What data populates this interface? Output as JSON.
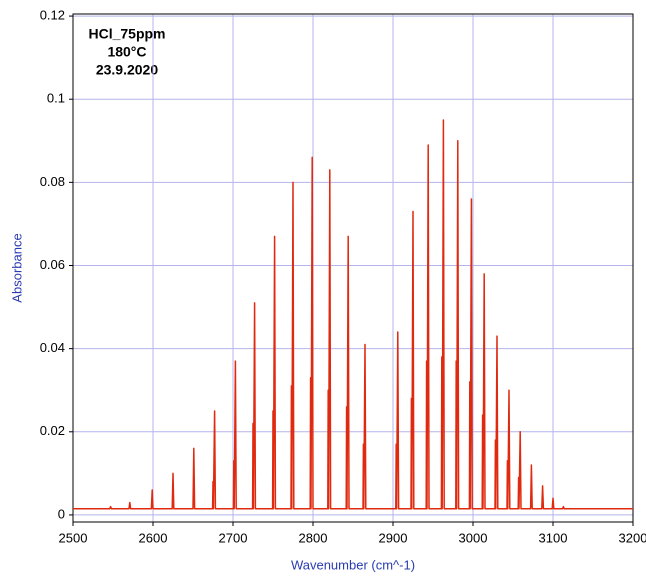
{
  "chart_data": {
    "type": "line",
    "annotation_lines": [
      "HCl_75ppm",
      "180°C",
      "23.9.2020"
    ],
    "xlabel": "Wavenumber (cm^-1)",
    "ylabel": "Absorbance",
    "xlim": [
      2500,
      3200
    ],
    "ylim": [
      -0.0017,
      0.1205
    ],
    "xticks": [
      2500,
      2600,
      2700,
      2800,
      2900,
      3000,
      3100,
      3200
    ],
    "yticks": [
      0,
      0.02,
      0.04,
      0.06,
      0.08,
      0.1,
      0.12
    ],
    "grid": true,
    "grid_color": "#b4b4ec",
    "x": [
      2500,
      2546,
      2547,
      2548,
      2570,
      2571,
      2572,
      2598,
      2599,
      2600,
      2624,
      2625,
      2626,
      2650,
      2651,
      2652,
      2674.5,
      2675,
      2675.5,
      2677,
      2678,
      2700.5,
      2701,
      2701.5,
      2703,
      2704,
      2724.5,
      2725,
      2725.5,
      2727,
      2728,
      2749.5,
      2750,
      2750.5,
      2752,
      2753,
      2772.5,
      2773,
      2773.5,
      2775,
      2776,
      2796.5,
      2797,
      2797.5,
      2799,
      2800,
      2818.5,
      2819,
      2819.5,
      2821,
      2822,
      2841.5,
      2842,
      2842.5,
      2844,
      2845,
      2862.5,
      2863,
      2863.5,
      2865,
      2866,
      2903.5,
      2904,
      2904.5,
      2906,
      2907,
      2922.5,
      2923,
      2923.5,
      2925,
      2926,
      2941.5,
      2942,
      2942.5,
      2944,
      2945,
      2960.5,
      2961,
      2961.5,
      2963,
      2964,
      2978.5,
      2979,
      2979.5,
      2981,
      2982,
      2995.5,
      2996,
      2996.5,
      2998,
      2999,
      3011.5,
      3012,
      3012.5,
      3014,
      3015,
      3027.5,
      3028,
      3028.5,
      3030,
      3031,
      3042.5,
      3043,
      3043.5,
      3045,
      3046,
      3056.5,
      3057,
      3057.5,
      3059,
      3060,
      3072,
      3073,
      3074,
      3086,
      3087,
      3088,
      3099,
      3100,
      3101,
      3112,
      3113,
      3114,
      3200
    ],
    "series": [
      {
        "color": "#e02a10",
        "values": [
          0.0015,
          0.0015,
          0.002,
          0.0015,
          0.0015,
          0.003,
          0.0015,
          0.0015,
          0.006,
          0.0015,
          0.0015,
          0.01,
          0.0015,
          0.0015,
          0.016,
          0.0015,
          0.0015,
          0.008,
          0.0015,
          0.025,
          0.0015,
          0.0015,
          0.013,
          0.0015,
          0.037,
          0.0015,
          0.0015,
          0.022,
          0.0015,
          0.051,
          0.0015,
          0.0015,
          0.025,
          0.0015,
          0.067,
          0.0015,
          0.0015,
          0.031,
          0.0015,
          0.08,
          0.0015,
          0.0015,
          0.033,
          0.0015,
          0.086,
          0.0015,
          0.0015,
          0.03,
          0.0015,
          0.083,
          0.0015,
          0.0015,
          0.026,
          0.0015,
          0.067,
          0.0015,
          0.0015,
          0.017,
          0.0015,
          0.041,
          0.0015,
          0.0015,
          0.017,
          0.0015,
          0.044,
          0.0015,
          0.0015,
          0.028,
          0.0015,
          0.073,
          0.0015,
          0.0015,
          0.037,
          0.0015,
          0.089,
          0.0015,
          0.0015,
          0.038,
          0.0015,
          0.095,
          0.0015,
          0.0015,
          0.037,
          0.0015,
          0.09,
          0.0015,
          0.0015,
          0.032,
          0.0015,
          0.076,
          0.0015,
          0.0015,
          0.024,
          0.0015,
          0.058,
          0.0015,
          0.0015,
          0.018,
          0.0015,
          0.043,
          0.0015,
          0.0015,
          0.013,
          0.0015,
          0.03,
          0.0015,
          0.0015,
          0.009,
          0.0015,
          0.02,
          0.0015,
          0.0015,
          0.012,
          0.0015,
          0.0015,
          0.007,
          0.0015,
          0.0015,
          0.004,
          0.0015,
          0.0015,
          0.002,
          0.0015,
          0.0015
        ]
      }
    ]
  }
}
